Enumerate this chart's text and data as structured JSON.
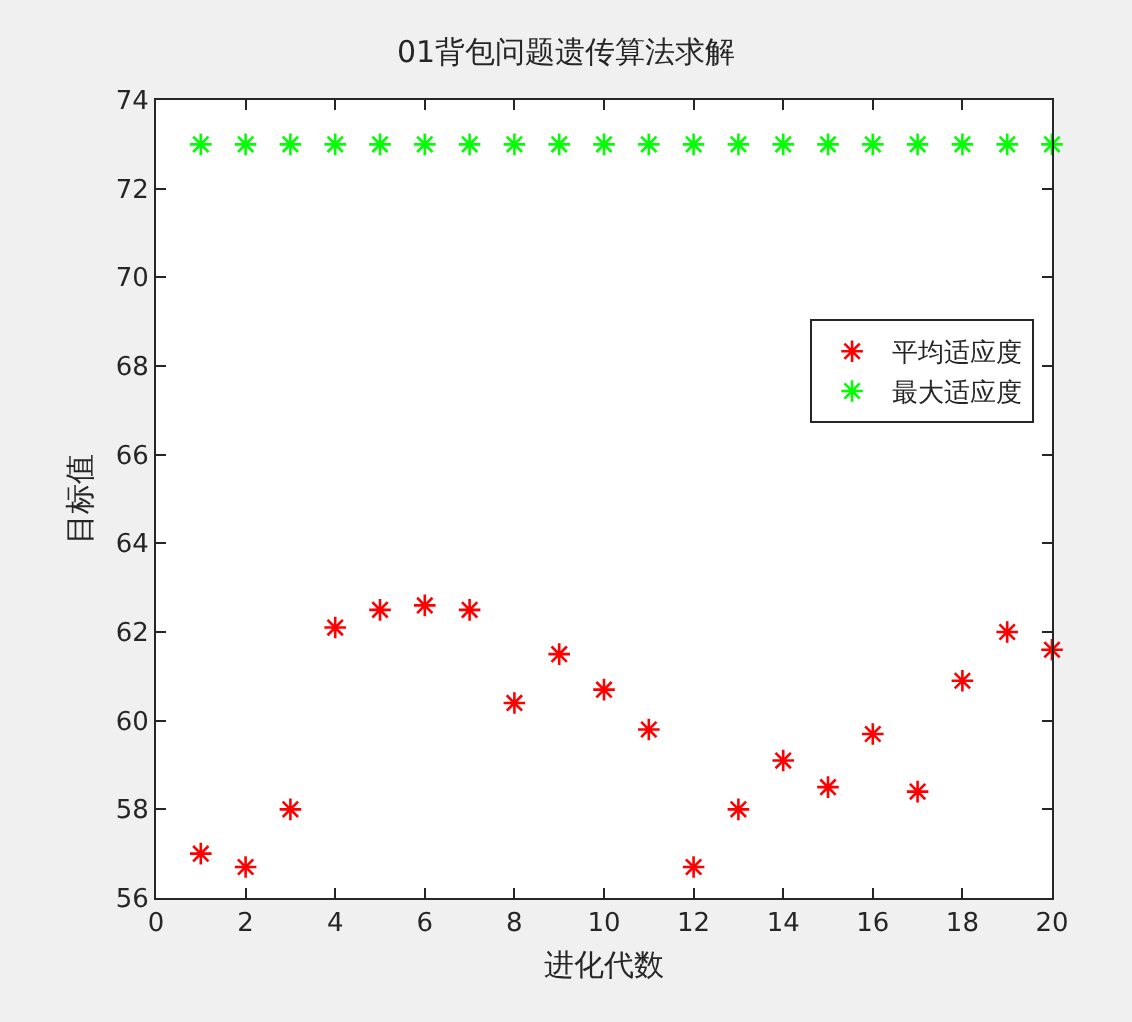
{
  "chart_data": {
    "type": "scatter",
    "title": "01背包问题遗传算法求解",
    "xlabel": "进化代数",
    "ylabel": "目标值",
    "x": [
      1,
      2,
      3,
      4,
      5,
      6,
      7,
      8,
      9,
      10,
      11,
      12,
      13,
      14,
      15,
      16,
      17,
      18,
      19,
      20
    ],
    "series": [
      {
        "name": "平均适应度",
        "color": "#ff0000",
        "values": [
          57.0,
          56.7,
          58.0,
          62.1,
          62.5,
          62.6,
          62.5,
          60.4,
          61.5,
          60.7,
          59.8,
          56.7,
          58.0,
          59.1,
          58.5,
          59.7,
          58.4,
          60.9,
          62.0,
          61.6
        ]
      },
      {
        "name": "最大适应度",
        "color": "#00ff00",
        "values": [
          73,
          73,
          73,
          73,
          73,
          73,
          73,
          73,
          73,
          73,
          73,
          73,
          73,
          73,
          73,
          73,
          73,
          73,
          73,
          73
        ]
      }
    ],
    "xlim": [
      0,
      20
    ],
    "xticks": [
      0,
      2,
      4,
      6,
      8,
      10,
      12,
      14,
      16,
      18,
      20
    ],
    "ylim": [
      56,
      74
    ],
    "yticks": [
      56,
      58,
      60,
      62,
      64,
      66,
      68,
      70,
      72,
      74
    ],
    "grid": false,
    "legend": "right",
    "marker": "cross"
  }
}
